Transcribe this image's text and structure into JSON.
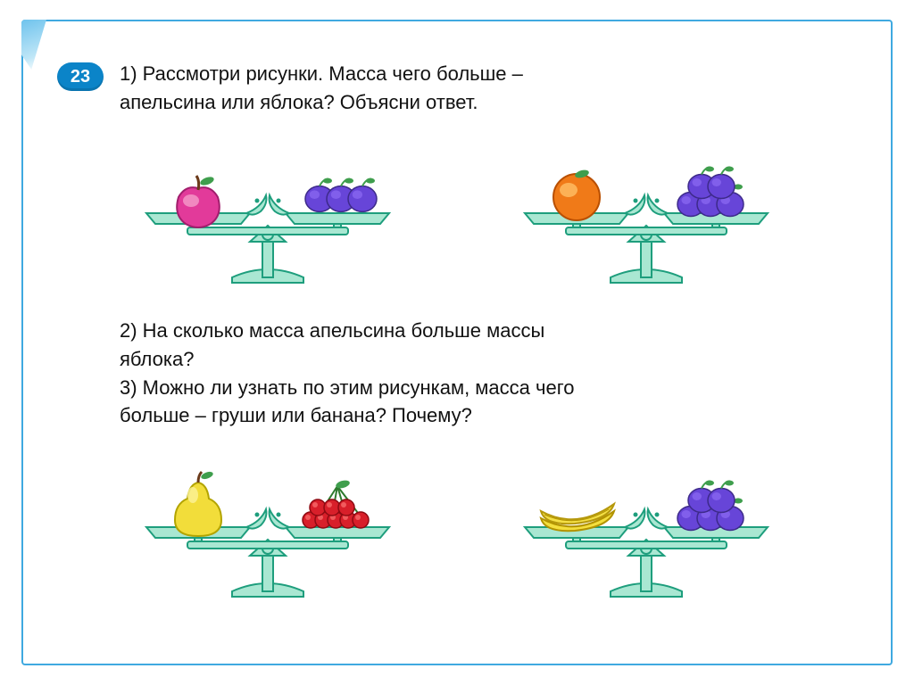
{
  "badge": "23",
  "q1_line1": "1) Рассмотри рисунки. Масса чего больше –",
  "q1_line2": "апельсина или яблока? Объясни ответ.",
  "q2_line1": "2) На сколько масса апельсина больше массы",
  "q2_line2": "яблока?",
  "q3_line1": "3) Можно ли узнать по этим рисункам, масса чего",
  "q3_line2": "больше – груши или банана? Почему?",
  "colors": {
    "scale_fill": "#a9e7d2",
    "scale_stroke": "#1e9e7d",
    "plum": "#6745d8",
    "plum_hi": "#8d6bf3",
    "plum_leaf": "#3f9e4d",
    "apple_body": "#e23a9a",
    "apple_hi": "#f59cc9",
    "apple_leaf": "#3f9e4d",
    "orange_body": "#f07a18",
    "orange_hi": "#ffbf66",
    "orange_leaf": "#3f9e4d",
    "pear_body": "#f2dd3a",
    "pear_hi": "#fbf29a",
    "pear_leaf": "#3f9e4d",
    "cherry": "#d81f2a",
    "cherry_hi": "#f76a6a",
    "cherry_stem": "#2e7a2e",
    "banana_body": "#f4df3d",
    "banana_stroke": "#b29300"
  },
  "scales": {
    "row1": [
      {
        "left": "apple",
        "right": "plums3"
      },
      {
        "left": "orange",
        "right": "plums5"
      }
    ],
    "row2": [
      {
        "left": "pear",
        "right": "cherries"
      },
      {
        "left": "banana",
        "right": "plums5"
      }
    ]
  }
}
